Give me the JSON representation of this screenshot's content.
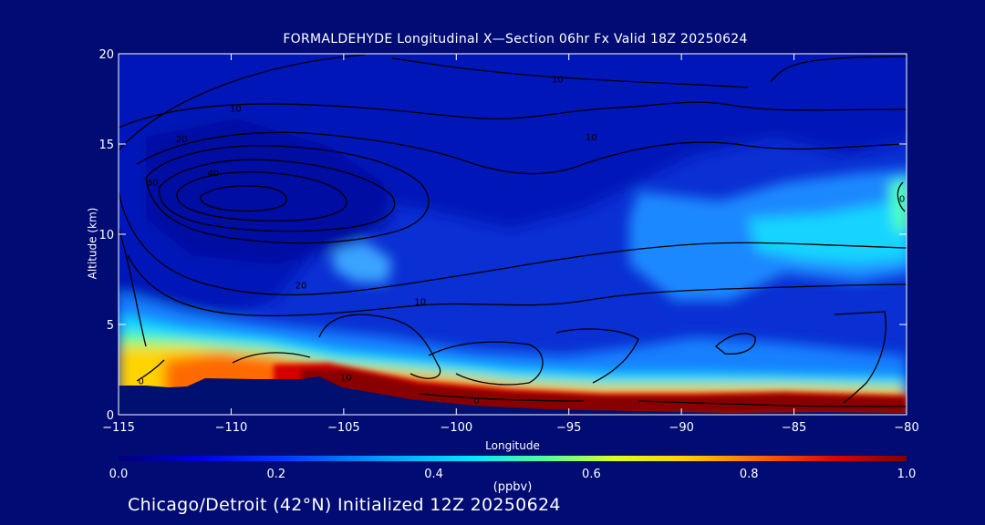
{
  "chart_data": {
    "type": "heatmap",
    "title": "FORMALDEHYDE Longitudinal X—Section 06hr  Fx Valid 18Z 20250624",
    "xlabel": "Longitude",
    "ylabel": "Altitude (km)",
    "xlim": [
      -115,
      -80
    ],
    "ylim": [
      0,
      20
    ],
    "x_ticks": [
      -115,
      -110,
      -105,
      -100,
      -95,
      -90,
      -85,
      -80
    ],
    "x_tick_labels": [
      "−115",
      "−110",
      "−105",
      "−100",
      "−95",
      "−90",
      "−85",
      "−80"
    ],
    "y_ticks": [
      0,
      5,
      10,
      15,
      20
    ],
    "y_tick_labels": [
      "0",
      "5",
      "10",
      "15",
      "20"
    ],
    "colorbar": {
      "label": "(ppbv)",
      "range": [
        0.0,
        1.0
      ],
      "ticks": [
        0.0,
        0.2,
        0.4,
        0.6,
        0.8,
        1.0
      ],
      "tick_labels": [
        "0.0",
        "0.2",
        "0.4",
        "0.6",
        "0.8",
        "1.0"
      ],
      "colors": [
        "#00007a",
        "#0000d8",
        "#0040ff",
        "#00a0ff",
        "#00e8ff",
        "#60ff90",
        "#d8ff20",
        "#ffd000",
        "#ff6000",
        "#e00000",
        "#800000"
      ]
    },
    "contour_labels": [
      {
        "text": "10",
        "x": -95.5,
        "y": 18.6
      },
      {
        "text": "10",
        "x": -109.8,
        "y": 17.0
      },
      {
        "text": "10",
        "x": -94.0,
        "y": 15.4
      },
      {
        "text": "20",
        "x": -112.2,
        "y": 15.3
      },
      {
        "text": "30",
        "x": -113.5,
        "y": 12.9
      },
      {
        "text": "40",
        "x": -110.8,
        "y": 13.4
      },
      {
        "text": "20",
        "x": -106.9,
        "y": 7.2
      },
      {
        "text": "10",
        "x": -101.6,
        "y": 6.3
      },
      {
        "text": "10",
        "x": -104.9,
        "y": 2.1
      },
      {
        "text": "0",
        "x": -114.0,
        "y": 1.9
      },
      {
        "text": "0",
        "x": -99.1,
        "y": 0.8
      },
      {
        "text": "0",
        "x": -80.2,
        "y": 12.0
      }
    ]
  },
  "footer": {
    "text": "Chicago/Detroit (42°N) Initialized 12Z 20250624"
  }
}
